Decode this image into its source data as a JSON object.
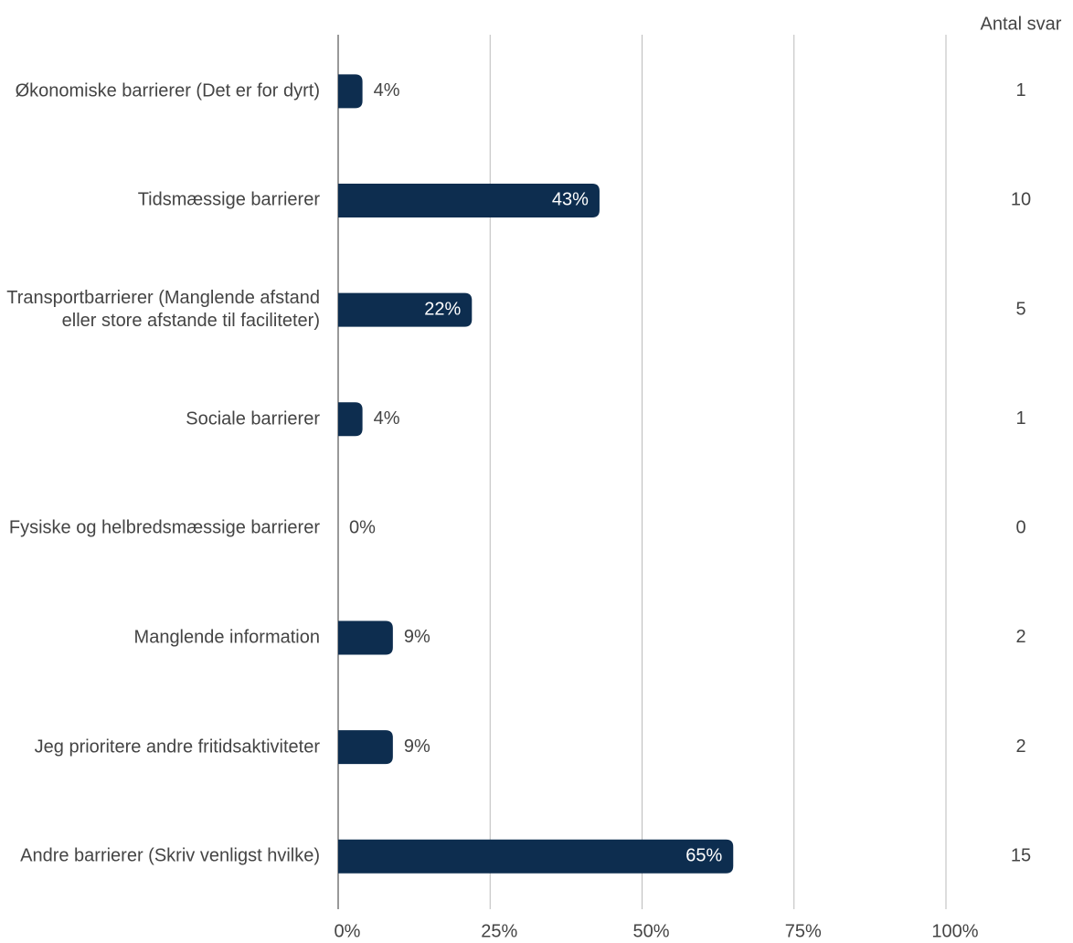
{
  "chart_data": {
    "type": "bar",
    "orientation": "horizontal",
    "categories": [
      "Økonomiske barrierer (Det er for dyrt)",
      "Tidsmæssige barrierer",
      "Transportbarrierer (Manglende afstand eller store afstande til faciliteter)",
      "Sociale barrierer",
      "Fysiske og helbredsmæssige barrierer",
      "Manglende information",
      "Jeg prioritere andre fritidsaktiviteter",
      "Andre barrierer (Skriv venligst hvilke)"
    ],
    "values": [
      4,
      43,
      22,
      4,
      0,
      9,
      9,
      65
    ],
    "value_labels": [
      "4%",
      "43%",
      "22%",
      "4%",
      "0%",
      "9%",
      "9%",
      "65%"
    ],
    "color": "#0d2d4f",
    "counts_label": "Antal svar",
    "counts": [
      1,
      10,
      5,
      1,
      0,
      2,
      2,
      15
    ],
    "xlim": [
      0,
      100
    ],
    "xticks": [
      {
        "value": 0,
        "label": "0%"
      },
      {
        "value": 25,
        "label": "25%"
      },
      {
        "value": 50,
        "label": "50%"
      },
      {
        "value": 75,
        "label": "75%"
      },
      {
        "value": 100,
        "label": "100%"
      }
    ],
    "grid": true
  }
}
